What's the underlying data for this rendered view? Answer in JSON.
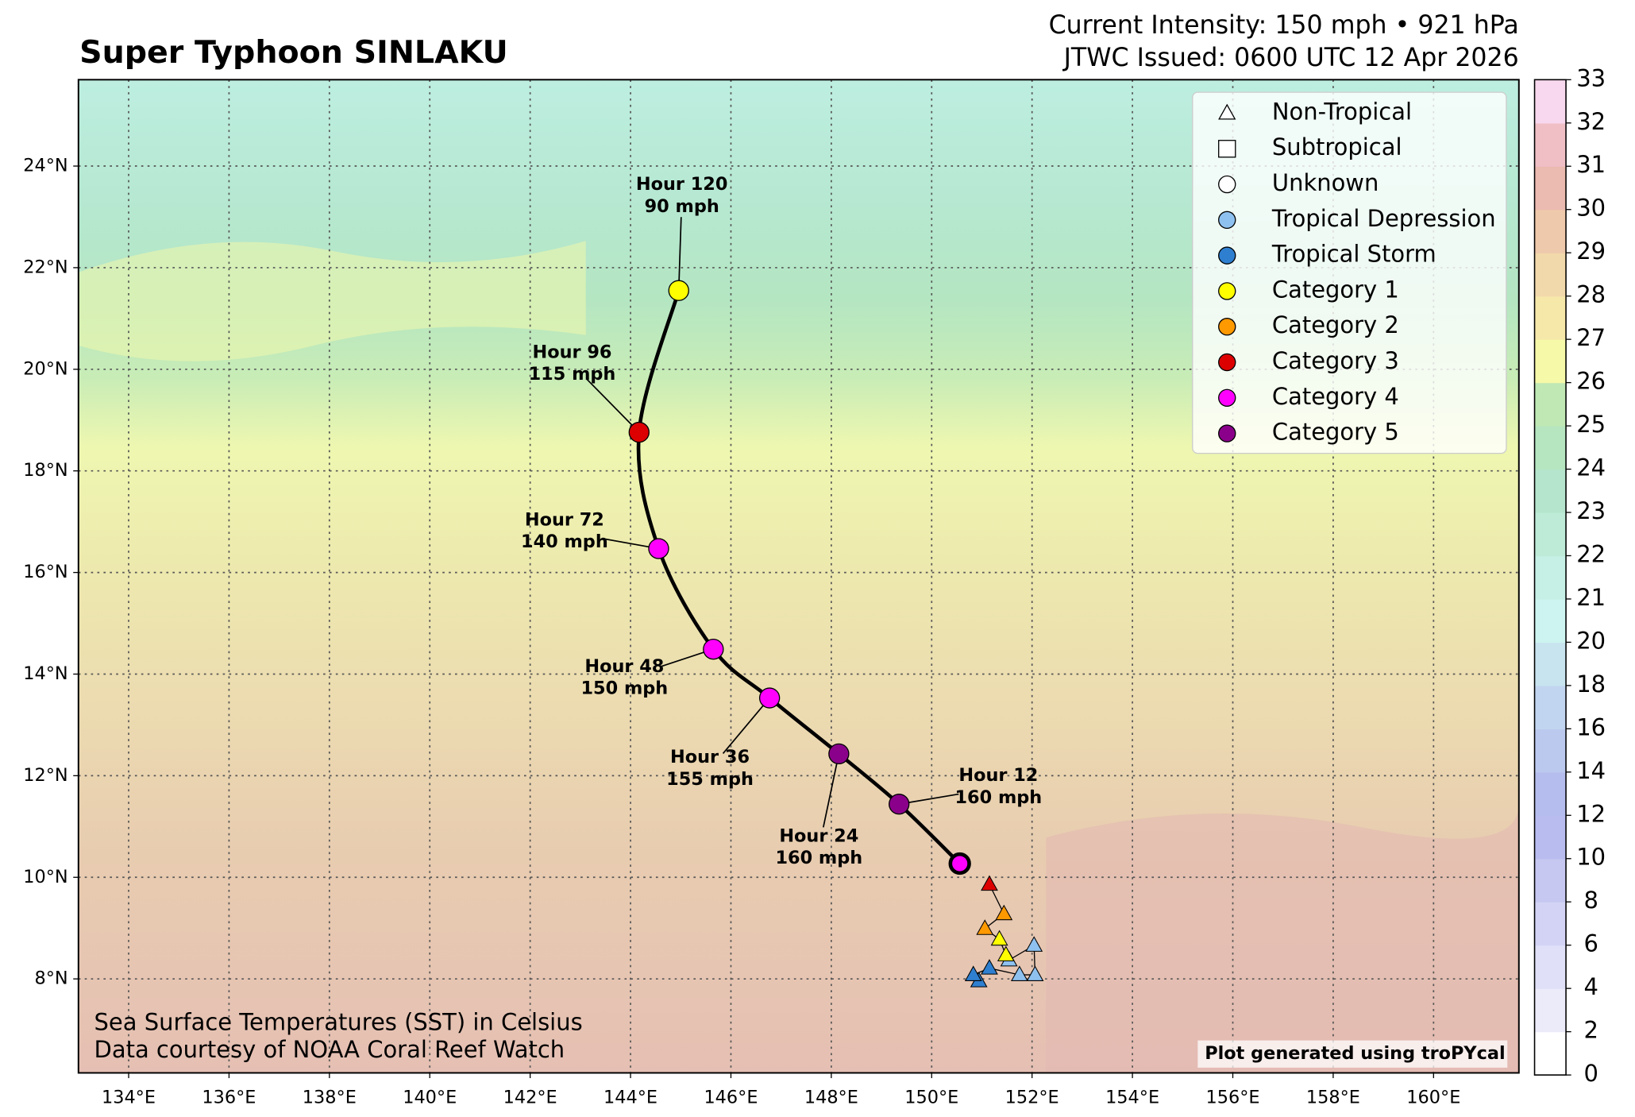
{
  "chart_data": {
    "type": "track-map",
    "title": "Super Typhoon SINLAKU",
    "subtitle": [
      "Current Intensity: 150 mph • 921 hPa",
      "JTWC Issued: 0600 UTC 12 Apr 2026"
    ],
    "annotations": [
      "Sea Surface Temperatures (SST) in Celsius",
      "Data courtesy of NOAA Coral Reef Watch"
    ],
    "credit": "Plot generated using troPYcal",
    "xlim": [
      133.0,
      161.7
    ],
    "ylim": [
      6.15,
      25.7
    ],
    "grid": true,
    "xticks": [
      {
        "value": 134,
        "label": "134°E"
      },
      {
        "value": 136,
        "label": "136°E"
      },
      {
        "value": 138,
        "label": "138°E"
      },
      {
        "value": 140,
        "label": "140°E"
      },
      {
        "value": 142,
        "label": "142°E"
      },
      {
        "value": 144,
        "label": "144°E"
      },
      {
        "value": 146,
        "label": "146°E"
      },
      {
        "value": 148,
        "label": "148°E"
      },
      {
        "value": 150,
        "label": "150°E"
      },
      {
        "value": 152,
        "label": "152°E"
      },
      {
        "value": 154,
        "label": "154°E"
      },
      {
        "value": 156,
        "label": "156°E"
      },
      {
        "value": 158,
        "label": "158°E"
      },
      {
        "value": 160,
        "label": "160°E"
      }
    ],
    "yticks": [
      {
        "value": 8,
        "label": "8°N"
      },
      {
        "value": 10,
        "label": "10°N"
      },
      {
        "value": 12,
        "label": "12°N"
      },
      {
        "value": 14,
        "label": "14°N"
      },
      {
        "value": 16,
        "label": "16°N"
      },
      {
        "value": 18,
        "label": "18°N"
      },
      {
        "value": 20,
        "label": "20°N"
      },
      {
        "value": 22,
        "label": "22°N"
      },
      {
        "value": 24,
        "label": "24°N"
      }
    ],
    "legend_position": "upper right",
    "legend": [
      {
        "name": "Non-Tropical",
        "marker": "triangle"
      },
      {
        "name": "Subtropical",
        "marker": "square"
      },
      {
        "name": "Unknown",
        "marker": "circle"
      },
      {
        "name": "Tropical Depression",
        "marker": "circle",
        "color": "#8ec1ef"
      },
      {
        "name": "Tropical Storm",
        "marker": "circle",
        "color": "#2f7fd0"
      },
      {
        "name": "Category 1",
        "marker": "circle",
        "color": "#ffff00"
      },
      {
        "name": "Category 2",
        "marker": "circle",
        "color": "#ff9900"
      },
      {
        "name": "Category 3",
        "marker": "circle",
        "color": "#dd0000"
      },
      {
        "name": "Category 4",
        "marker": "circle",
        "color": "#ff00ff"
      },
      {
        "name": "Category 5",
        "marker": "circle",
        "color": "#8b008b"
      }
    ],
    "past": {
      "lon": [
        150.94,
        150.83,
        151.15,
        151.75,
        152.06,
        152.04,
        151.54,
        151.48,
        151.35,
        151.06,
        151.44,
        151.15
      ],
      "lat": [
        7.96,
        8.08,
        8.21,
        8.08,
        8.08,
        8.66,
        8.37,
        8.47,
        8.78,
        8.99,
        9.28,
        9.86
      ],
      "color": [
        "#2f7fd0",
        "#2f7fd0",
        "#2f7fd0",
        "#8ec1ef",
        "#8ec1ef",
        "#8ec1ef",
        "#8ec1ef",
        "#ffff00",
        "#ffff00",
        "#ff9900",
        "#ff9900",
        "#dd0000"
      ]
    },
    "forecast": {
      "lon": [
        150.56,
        149.35,
        148.15,
        146.77,
        145.65,
        144.56,
        144.17,
        144.96
      ],
      "lat": [
        10.27,
        11.44,
        12.43,
        13.53,
        14.49,
        16.47,
        18.76,
        21.55
      ],
      "color": [
        "#ff00ff",
        "#8b008b",
        "#8b008b",
        "#ff00ff",
        "#ff00ff",
        "#ff00ff",
        "#dd0000",
        "#ffff00"
      ],
      "hours": [
        null,
        "Hour 12",
        "Hour 24",
        "Hour 36",
        "Hour 48",
        "Hour 72",
        "Hour 96",
        "Hour 120"
      ],
      "intensity": [
        null,
        "160 mph",
        "160 mph",
        "155 mph",
        "150 mph",
        "140 mph",
        "115 mph",
        "90 mph"
      ]
    },
    "colorbar": {
      "ticks": [
        0,
        2,
        4,
        6,
        8,
        10,
        12,
        14,
        16,
        18,
        20,
        21,
        22,
        23,
        24,
        25,
        26,
        27,
        28,
        29,
        30,
        31,
        32,
        33
      ],
      "colors": [
        "#ffffff",
        "#ecebfa",
        "#e0e0f8",
        "#d3d4f5",
        "#c6c8f2",
        "#b8bcef",
        "#b5bdee",
        "#bcc9ef",
        "#c2d5f0",
        "#c8e4ef",
        "#cdf4f0",
        "#c6f0e6",
        "#bdebd8",
        "#b5e6cd",
        "#b5e6c0",
        "#bfe8b5",
        "#f5f9a8",
        "#f6e8a9",
        "#f2d9ab",
        "#efc9ab",
        "#ebbab0",
        "#f0bfc6",
        "#f8d8ee"
      ]
    }
  }
}
